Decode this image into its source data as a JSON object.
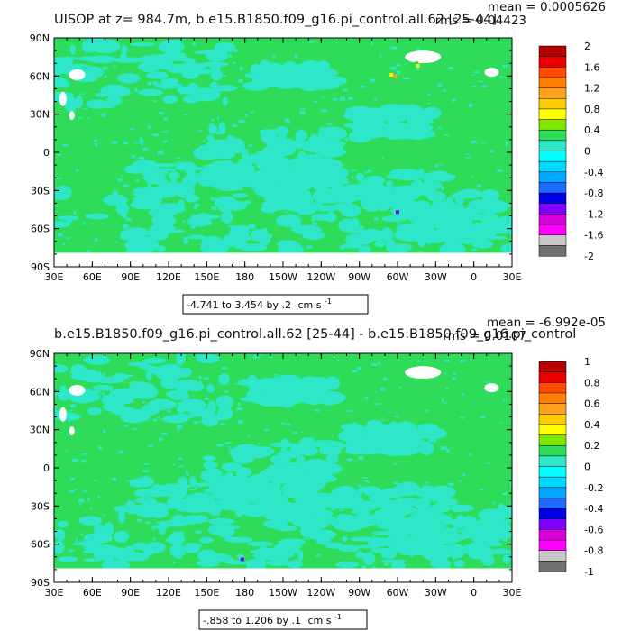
{
  "colors": {
    "zero_band": "#2edc5a",
    "neg_band_1": "#2ee6c8",
    "land_mask": "#ffffff",
    "frame": "#000000"
  },
  "chart_data": [
    {
      "type": "heatmap",
      "title": "UISOP at z= 984.7m, b.e15.B1850.f09_g16.pi_control.all.62 [25-44]",
      "stats": {
        "mean": "mean = 0.0005626",
        "rms": "rms = 0.04423"
      },
      "x_ticks": [
        "30E",
        "60E",
        "90E",
        "120E",
        "150E",
        "180",
        "150W",
        "120W",
        "90W",
        "60W",
        "30W",
        "0",
        "30E"
      ],
      "y_ticks": [
        "90N",
        "60N",
        "30N",
        "0",
        "30S",
        "60S",
        "90S"
      ],
      "xlim": [
        30,
        390
      ],
      "ylim": [
        -90,
        90
      ],
      "note": {
        "range": "-4.741 to 3.454 by .2",
        "units": "cm s",
        "exp": "-1"
      },
      "colorbar": {
        "labels": [
          "2",
          "1.6",
          "1.2",
          "0.8",
          "0.4",
          "0",
          "-0.4",
          "-0.8",
          "-1.2",
          "-1.6",
          "-2"
        ],
        "colors": [
          "#b40000",
          "#e80000",
          "#ff4a00",
          "#ff7f00",
          "#ffa020",
          "#ffcc00",
          "#ffff00",
          "#7fe600",
          "#2edc5a",
          "#2ee6c8",
          "#00ffff",
          "#00d8ff",
          "#00a8ff",
          "#1e6bff",
          "#0000e6",
          "#7f00ff",
          "#d800d8",
          "#ff00ff",
          "#c8c8c8",
          "#707070"
        ]
      },
      "anomalies": [
        {
          "lon": 291,
          "lat": 63,
          "level": "0.4"
        },
        {
          "lon": 295,
          "lat": 61,
          "level": "0.8"
        },
        {
          "lon": 298,
          "lat": 60,
          "level": "1.2"
        },
        {
          "lon": 315,
          "lat": 70,
          "level": "0.4"
        },
        {
          "lon": 316,
          "lat": 68,
          "level": "0.8"
        },
        {
          "lon": 300,
          "lat": -47,
          "level": "-1.2"
        }
      ]
    },
    {
      "type": "heatmap",
      "title": "b.e15.B1850.f09_g16.pi_control.all.62 [25-44] - b.e15.B1850.f09_g16.pi_control",
      "stats": {
        "mean": "mean = -6.992e-05",
        "rms": "rms = 0.0107"
      },
      "x_ticks": [
        "30E",
        "60E",
        "90E",
        "120E",
        "150E",
        "180",
        "150W",
        "120W",
        "90W",
        "60W",
        "30W",
        "0",
        "30E"
      ],
      "y_ticks": [
        "90N",
        "60N",
        "30N",
        "0",
        "30S",
        "60S",
        "90S"
      ],
      "xlim": [
        30,
        390
      ],
      "ylim": [
        -90,
        90
      ],
      "note": {
        "range": "-.858 to 1.206 by .1",
        "units": "cm s",
        "exp": "-1"
      },
      "colorbar": {
        "labels": [
          "1",
          "0.8",
          "0.6",
          "0.4",
          "0.2",
          "0",
          "-0.2",
          "-0.4",
          "-0.6",
          "-0.8",
          "-1"
        ],
        "colors": [
          "#b40000",
          "#e80000",
          "#ff4a00",
          "#ff7f00",
          "#ffa020",
          "#ffcc00",
          "#ffff00",
          "#7fe600",
          "#2edc5a",
          "#2ee6c8",
          "#00ffff",
          "#00d8ff",
          "#00a8ff",
          "#1e6bff",
          "#0000e6",
          "#7f00ff",
          "#d800d8",
          "#ff00ff",
          "#c8c8c8",
          "#707070"
        ]
      },
      "anomalies": [
        {
          "lon": 178,
          "lat": -72,
          "level": "-0.6"
        }
      ]
    }
  ]
}
